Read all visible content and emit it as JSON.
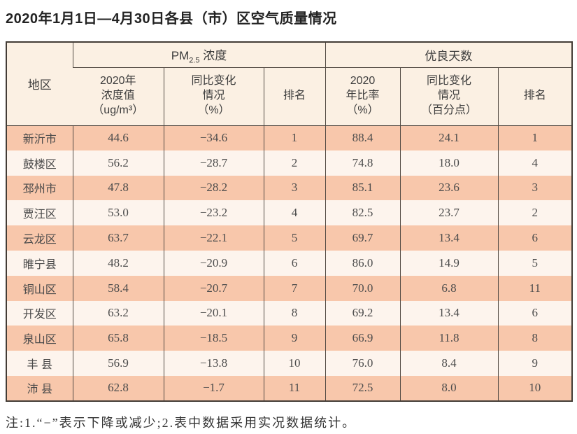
{
  "title": "2020年1月1日—4月30日各县（市）区空气质量情况",
  "table": {
    "region_header": "地区",
    "pm_group": {
      "base": "PM",
      "sub": "2.5",
      "rest": " 浓度"
    },
    "days_group": "优良天数",
    "sub_headers": {
      "pm_value": "2020年\n浓度值\n（ug/m³）",
      "pm_change": "同比变化\n情况\n（%）",
      "pm_rank": "排名",
      "days_ratio": "2020\n年比率\n（%）",
      "days_change": "同比变化\n情况\n（百分点）",
      "days_rank": "排名"
    },
    "rows": [
      {
        "region": "新沂市",
        "pm_value": "44.6",
        "pm_change": "−34.6",
        "pm_rank": "1",
        "days_ratio": "88.4",
        "days_change": "24.1",
        "days_rank": "1"
      },
      {
        "region": "鼓楼区",
        "pm_value": "56.2",
        "pm_change": "−28.7",
        "pm_rank": "2",
        "days_ratio": "74.8",
        "days_change": "18.0",
        "days_rank": "4"
      },
      {
        "region": "邳州市",
        "pm_value": "47.8",
        "pm_change": "−28.2",
        "pm_rank": "3",
        "days_ratio": "85.1",
        "days_change": "23.6",
        "days_rank": "3"
      },
      {
        "region": "贾汪区",
        "pm_value": "53.0",
        "pm_change": "−23.2",
        "pm_rank": "4",
        "days_ratio": "82.5",
        "days_change": "23.7",
        "days_rank": "2"
      },
      {
        "region": "云龙区",
        "pm_value": "63.7",
        "pm_change": "−22.1",
        "pm_rank": "5",
        "days_ratio": "69.7",
        "days_change": "13.4",
        "days_rank": "6"
      },
      {
        "region": "睢宁县",
        "pm_value": "48.2",
        "pm_change": "−20.9",
        "pm_rank": "6",
        "days_ratio": "86.0",
        "days_change": "14.9",
        "days_rank": "5"
      },
      {
        "region": "铜山区",
        "pm_value": "58.4",
        "pm_change": "−20.7",
        "pm_rank": "7",
        "days_ratio": "70.0",
        "days_change": "6.8",
        "days_rank": "11"
      },
      {
        "region": "开发区",
        "pm_value": "63.2",
        "pm_change": "−20.1",
        "pm_rank": "8",
        "days_ratio": "69.2",
        "days_change": "13.4",
        "days_rank": "6"
      },
      {
        "region": "泉山区",
        "pm_value": "65.8",
        "pm_change": "−18.5",
        "pm_rank": "9",
        "days_ratio": "66.9",
        "days_change": "11.8",
        "days_rank": "8"
      },
      {
        "region": "丰 县",
        "pm_value": "56.9",
        "pm_change": "−13.8",
        "pm_rank": "10",
        "days_ratio": "76.0",
        "days_change": "8.4",
        "days_rank": "9"
      },
      {
        "region": "沛 县",
        "pm_value": "62.8",
        "pm_change": "−1.7",
        "pm_rank": "11",
        "days_ratio": "72.5",
        "days_change": "8.0",
        "days_rank": "10"
      }
    ]
  },
  "footnote": "注:1.“−”表示下降或减少;2.表中数据采用实况数据统计。",
  "colors": {
    "row_odd": "#f8c7ab",
    "row_even": "#fdf4ed",
    "header_bg": "#fbf0e3",
    "border": "#534b44",
    "outer_border": "#433c36",
    "text": "#4c4c4c"
  }
}
